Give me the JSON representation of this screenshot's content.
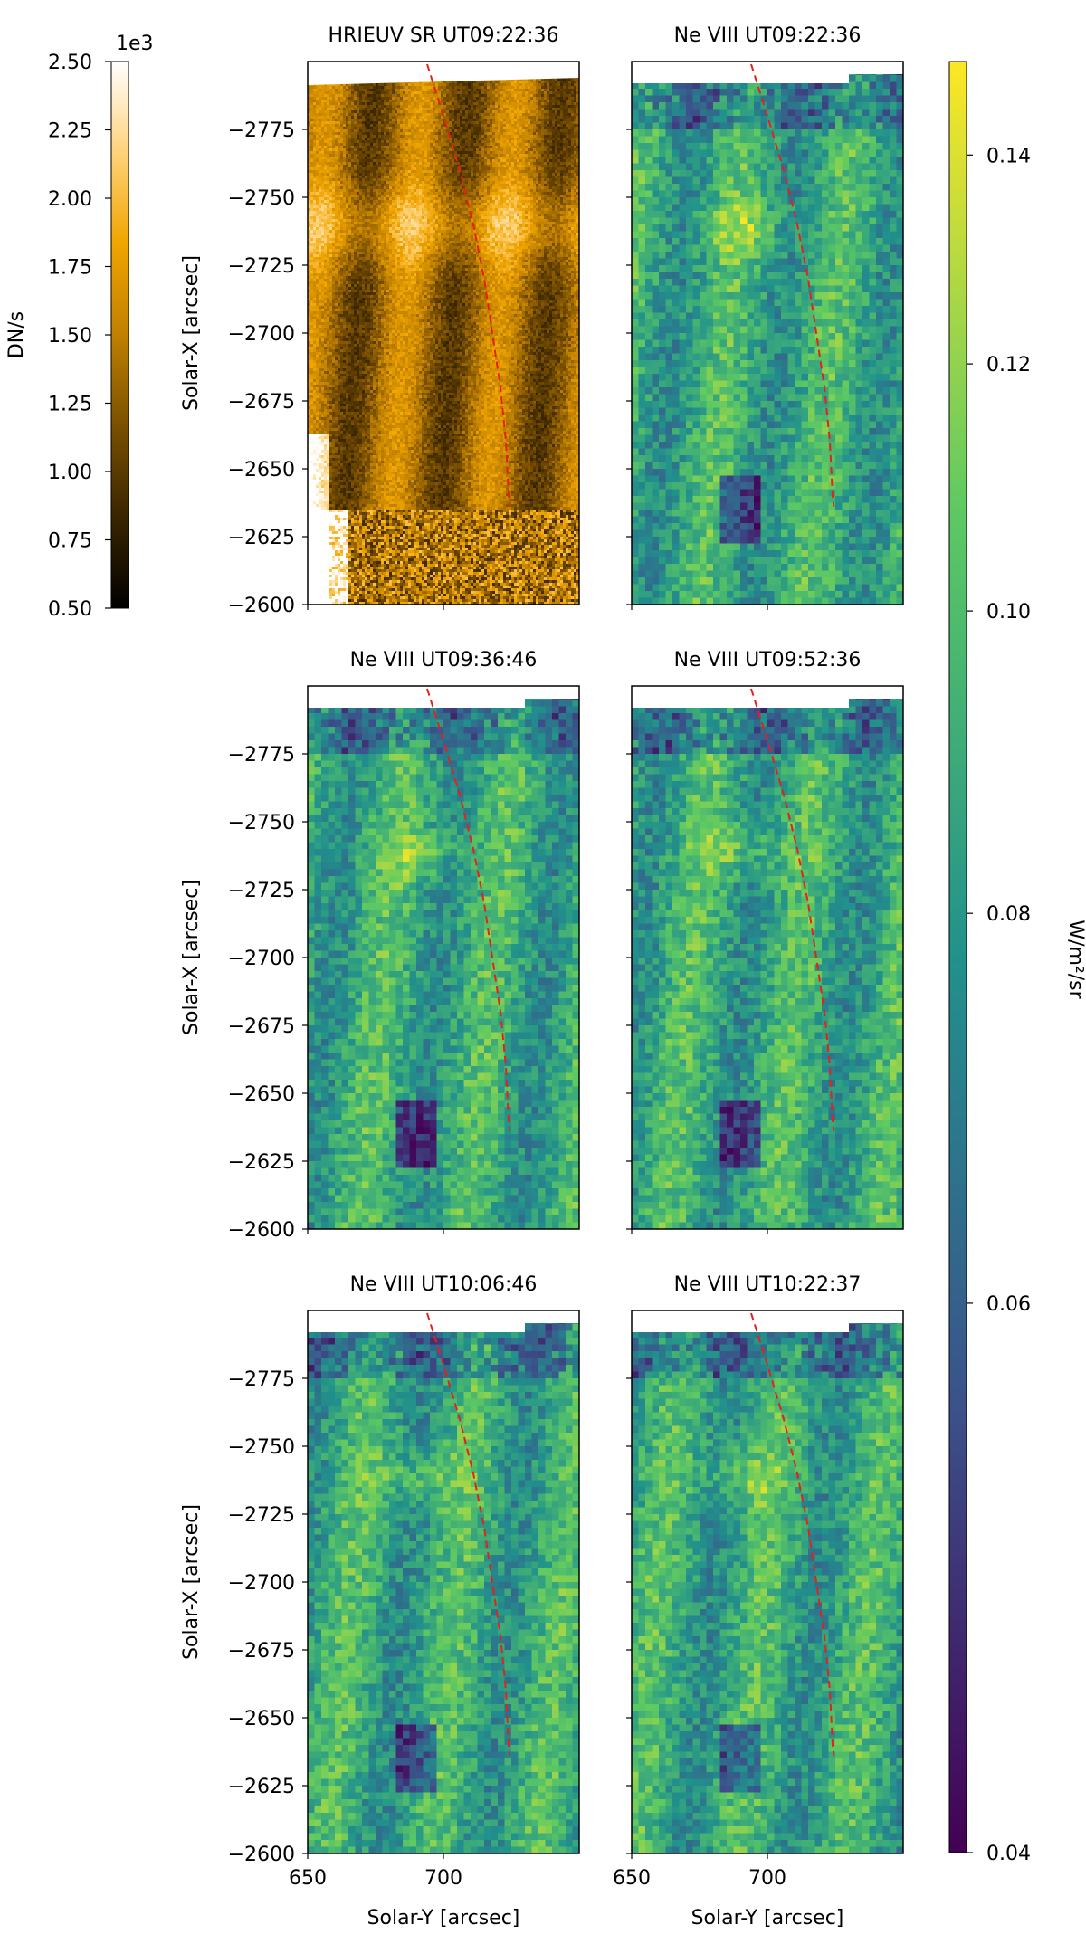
{
  "chart_data": {
    "type": "heatmap",
    "x_axis": {
      "label": "Solar-Y [arcsec]",
      "range": [
        650,
        750
      ],
      "ticks": [
        "650",
        "700"
      ]
    },
    "y_axis": {
      "label": "Solar-X [arcsec]",
      "range": [
        -2800,
        -2600
      ],
      "ticks": [
        "-2775",
        "-2750",
        "-2725",
        "-2700",
        "-2675",
        "-2650",
        "-2625",
        "-2600"
      ]
    },
    "panels": [
      {
        "id": "hri",
        "title": "HRIEUV SR UT09:22:36",
        "instrument": "HRIEUV",
        "time": "UT09:22:36"
      },
      {
        "id": "ne1",
        "title": "Ne VIII UT09:22:36",
        "instrument": "Ne VIII",
        "time": "UT09:22:36"
      },
      {
        "id": "ne2",
        "title": "Ne VIII UT09:36:46",
        "instrument": "Ne VIII",
        "time": "UT09:36:46"
      },
      {
        "id": "ne3",
        "title": "Ne VIII UT09:52:36",
        "instrument": "Ne VIII",
        "time": "UT09:52:36"
      },
      {
        "id": "ne4",
        "title": "Ne VIII UT10:06:46",
        "instrument": "Ne VIII",
        "time": "UT10:06:46"
      },
      {
        "id": "ne5",
        "title": "Ne VIII UT10:22:37",
        "instrument": "Ne VIII",
        "time": "UT10:22:37"
      }
    ],
    "dashed_path": {
      "color": "#e8201a",
      "points": [
        [
          694,
          -2799
        ],
        [
          700,
          -2780
        ],
        [
          706,
          -2760
        ],
        [
          711,
          -2740
        ],
        [
          715,
          -2720
        ],
        [
          718,
          -2700
        ],
        [
          721,
          -2680
        ],
        [
          723,
          -2660
        ],
        [
          724,
          -2640
        ],
        [
          724.5,
          -2636
        ]
      ]
    },
    "colorbar_left": {
      "label": "DN/s",
      "multiplier": "1e3",
      "range": [
        0.5,
        2.5
      ],
      "ticks": [
        "2.50",
        "2.25",
        "2.00",
        "1.75",
        "1.50",
        "1.25",
        "1.00",
        "0.75",
        "0.50"
      ],
      "colormap": [
        "#000000",
        "#3a2500",
        "#7a5000",
        "#c08000",
        "#f0a500",
        "#ffd27a",
        "#ffffff"
      ]
    },
    "colorbar_right": {
      "label": "W/m²/sr",
      "scale": "log",
      "range": [
        0.04,
        0.15
      ],
      "ticks": [
        "0.14",
        "0.12",
        "0.10",
        "0.08",
        "0.06",
        "0.04"
      ],
      "colormap": [
        "#440154",
        "#3b528b",
        "#21918c",
        "#5ec962",
        "#fde725"
      ]
    }
  }
}
